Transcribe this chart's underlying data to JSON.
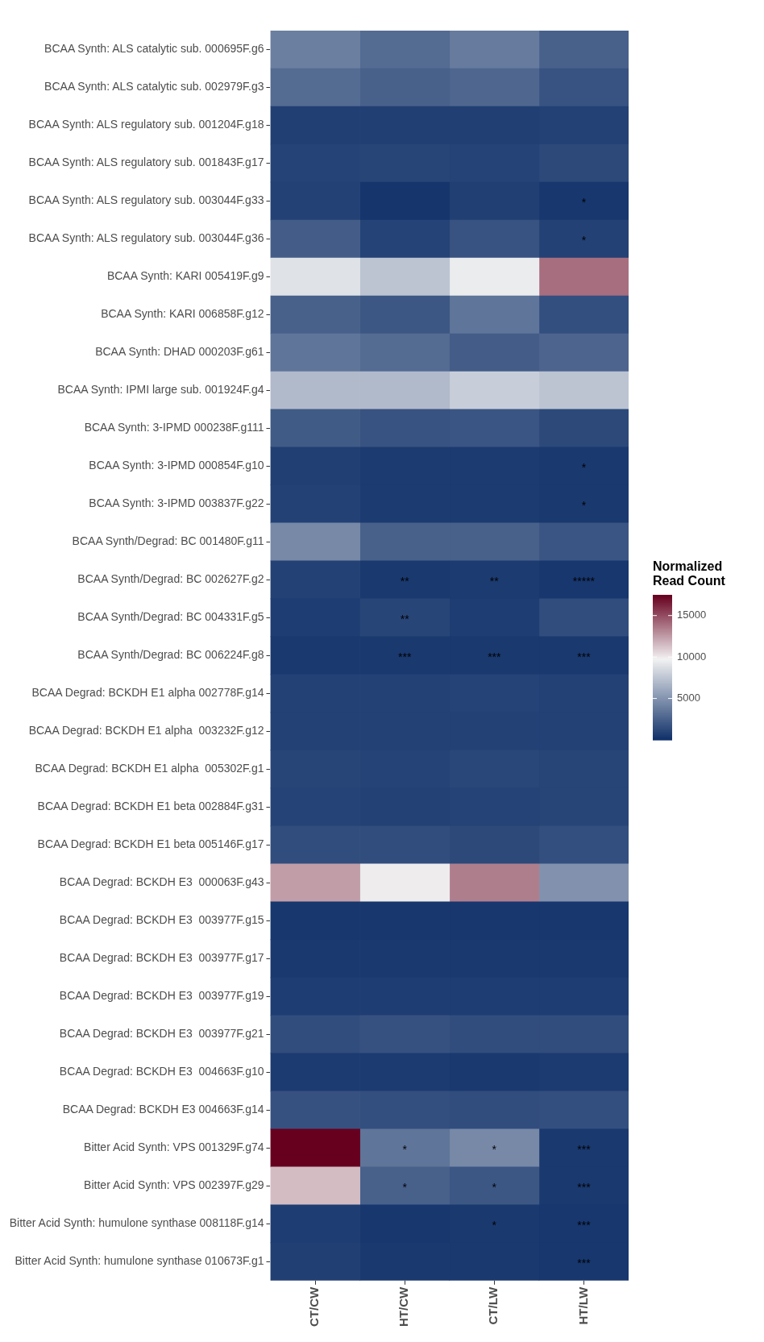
{
  "chart_data": {
    "type": "heatmap",
    "clabel": "Normalized Read Count",
    "clim": [
      0,
      17500
    ],
    "cticks": [
      5000,
      10000,
      15000
    ],
    "categories": [
      "CT/CW",
      "HT/CW",
      "CT/LW",
      "HT/LW"
    ],
    "y_categories": [
      "BCAA Synth: ALS catalytic sub. 000695F.g6",
      "BCAA Synth: ALS catalytic sub. 002979F.g3",
      "BCAA Synth: ALS regulatory sub. 001204F.g18",
      "BCAA Synth: ALS regulatory sub. 001843F.g17",
      "BCAA Synth: ALS regulatory sub. 003044F.g33",
      "BCAA Synth: ALS regulatory sub. 003044F.g36",
      "BCAA Synth: KARI 005419F.g9",
      "BCAA Synth: KARI 006858F.g12",
      "BCAA Synth: DHAD 000203F.g61",
      "BCAA Synth: IPMI large sub. 001924F.g4",
      "BCAA Synth: 3-IPMD 000238F.g111",
      "BCAA Synth: 3-IPMD 000854F.g10",
      "BCAA Synth: 3-IPMD 003837F.g22",
      "BCAA Synth/Degrad: BC 001480F.g11",
      "BCAA Synth/Degrad: BC 002627F.g2",
      "BCAA Synth/Degrad: BC 004331F.g5",
      "BCAA Synth/Degrad: BC 006224F.g8",
      "BCAA Degrad: BCKDH E1 alpha 002778F.g14",
      "BCAA Degrad: BCKDH E1 alpha  003232F.g12",
      "BCAA Degrad: BCKDH E1 alpha  005302F.g1",
      "BCAA Degrad: BCKDH E1 beta 002884F.g31",
      "BCAA Degrad: BCKDH E1 beta 005146F.g17",
      "BCAA Degrad: BCKDH E3  000063F.g43",
      "BCAA Degrad: BCKDH E3  003977F.g15",
      "BCAA Degrad: BCKDH E3  003977F.g17",
      "BCAA Degrad: BCKDH E3  003977F.g19",
      "BCAA Degrad: BCKDH E3  003977F.g21",
      "BCAA Degrad: BCKDH E3  004663F.g10",
      "BCAA Degrad: BCKDH E3 004663F.g14",
      "Bitter Acid Synth: VPS 001329F.g74",
      "Bitter Acid Synth: VPS 002397F.g29",
      "Bitter Acid Synth: humulone synthase 008118F.g14",
      "Bitter Acid Synth: humulone synthase 010673F.g1"
    ],
    "cells": [
      [
        4000,
        3000,
        3800,
        2500
      ],
      [
        3000,
        2500,
        2800,
        1800
      ],
      [
        800,
        800,
        800,
        900
      ],
      [
        1000,
        1100,
        1000,
        1300
      ],
      [
        900,
        300,
        800,
        400
      ],
      [
        2300,
        1000,
        1800,
        900
      ],
      [
        9000,
        7500,
        9500,
        14000
      ],
      [
        2500,
        2000,
        3500,
        1600
      ],
      [
        3500,
        3000,
        2300,
        2700
      ],
      [
        7000,
        7000,
        8000,
        7500
      ],
      [
        2200,
        1800,
        1900,
        1300
      ],
      [
        800,
        600,
        600,
        500
      ],
      [
        900,
        600,
        600,
        500
      ],
      [
        4500,
        2500,
        2500,
        1900
      ],
      [
        900,
        500,
        600,
        400
      ],
      [
        700,
        1100,
        700,
        1500
      ],
      [
        500,
        500,
        500,
        500
      ],
      [
        900,
        900,
        1000,
        900
      ],
      [
        900,
        900,
        900,
        900
      ],
      [
        1100,
        1000,
        1200,
        1100
      ],
      [
        1000,
        900,
        1000,
        1100
      ],
      [
        1500,
        1500,
        1300,
        1600
      ],
      [
        12500,
        10000,
        13500,
        5000
      ],
      [
        400,
        400,
        400,
        400
      ],
      [
        500,
        500,
        500,
        500
      ],
      [
        700,
        700,
        700,
        700
      ],
      [
        1500,
        1700,
        1500,
        1500
      ],
      [
        600,
        600,
        500,
        600
      ],
      [
        1700,
        1600,
        1500,
        1600
      ],
      [
        17500,
        3500,
        4500,
        500
      ],
      [
        11500,
        2500,
        2000,
        500
      ],
      [
        700,
        400,
        500,
        400
      ],
      [
        800,
        500,
        500,
        400
      ]
    ],
    "cell_labels": [
      [
        null,
        null,
        null,
        null
      ],
      [
        null,
        null,
        null,
        null
      ],
      [
        null,
        null,
        null,
        null
      ],
      [
        null,
        null,
        null,
        null
      ],
      [
        null,
        null,
        null,
        "*"
      ],
      [
        null,
        null,
        null,
        "*"
      ],
      [
        null,
        null,
        null,
        null
      ],
      [
        null,
        null,
        null,
        null
      ],
      [
        null,
        null,
        null,
        null
      ],
      [
        null,
        null,
        null,
        null
      ],
      [
        null,
        null,
        null,
        null
      ],
      [
        null,
        null,
        null,
        "*"
      ],
      [
        null,
        null,
        null,
        "*"
      ],
      [
        null,
        null,
        null,
        null
      ],
      [
        null,
        "**",
        "**",
        "*****"
      ],
      [
        null,
        "**",
        null,
        null
      ],
      [
        null,
        "***",
        "***",
        "***"
      ],
      [
        null,
        null,
        null,
        null
      ],
      [
        null,
        null,
        null,
        null
      ],
      [
        null,
        null,
        null,
        null
      ],
      [
        null,
        null,
        null,
        null
      ],
      [
        null,
        null,
        null,
        null
      ],
      [
        null,
        null,
        null,
        null
      ],
      [
        null,
        null,
        null,
        null
      ],
      [
        null,
        null,
        null,
        null
      ],
      [
        null,
        null,
        null,
        null
      ],
      [
        null,
        null,
        null,
        null
      ],
      [
        null,
        null,
        null,
        null
      ],
      [
        null,
        null,
        null,
        null
      ],
      [
        null,
        "*",
        "*",
        "***"
      ],
      [
        null,
        "*",
        "*",
        "***"
      ],
      [
        null,
        null,
        "*",
        "***"
      ],
      [
        null,
        null,
        null,
        "***"
      ]
    ]
  }
}
